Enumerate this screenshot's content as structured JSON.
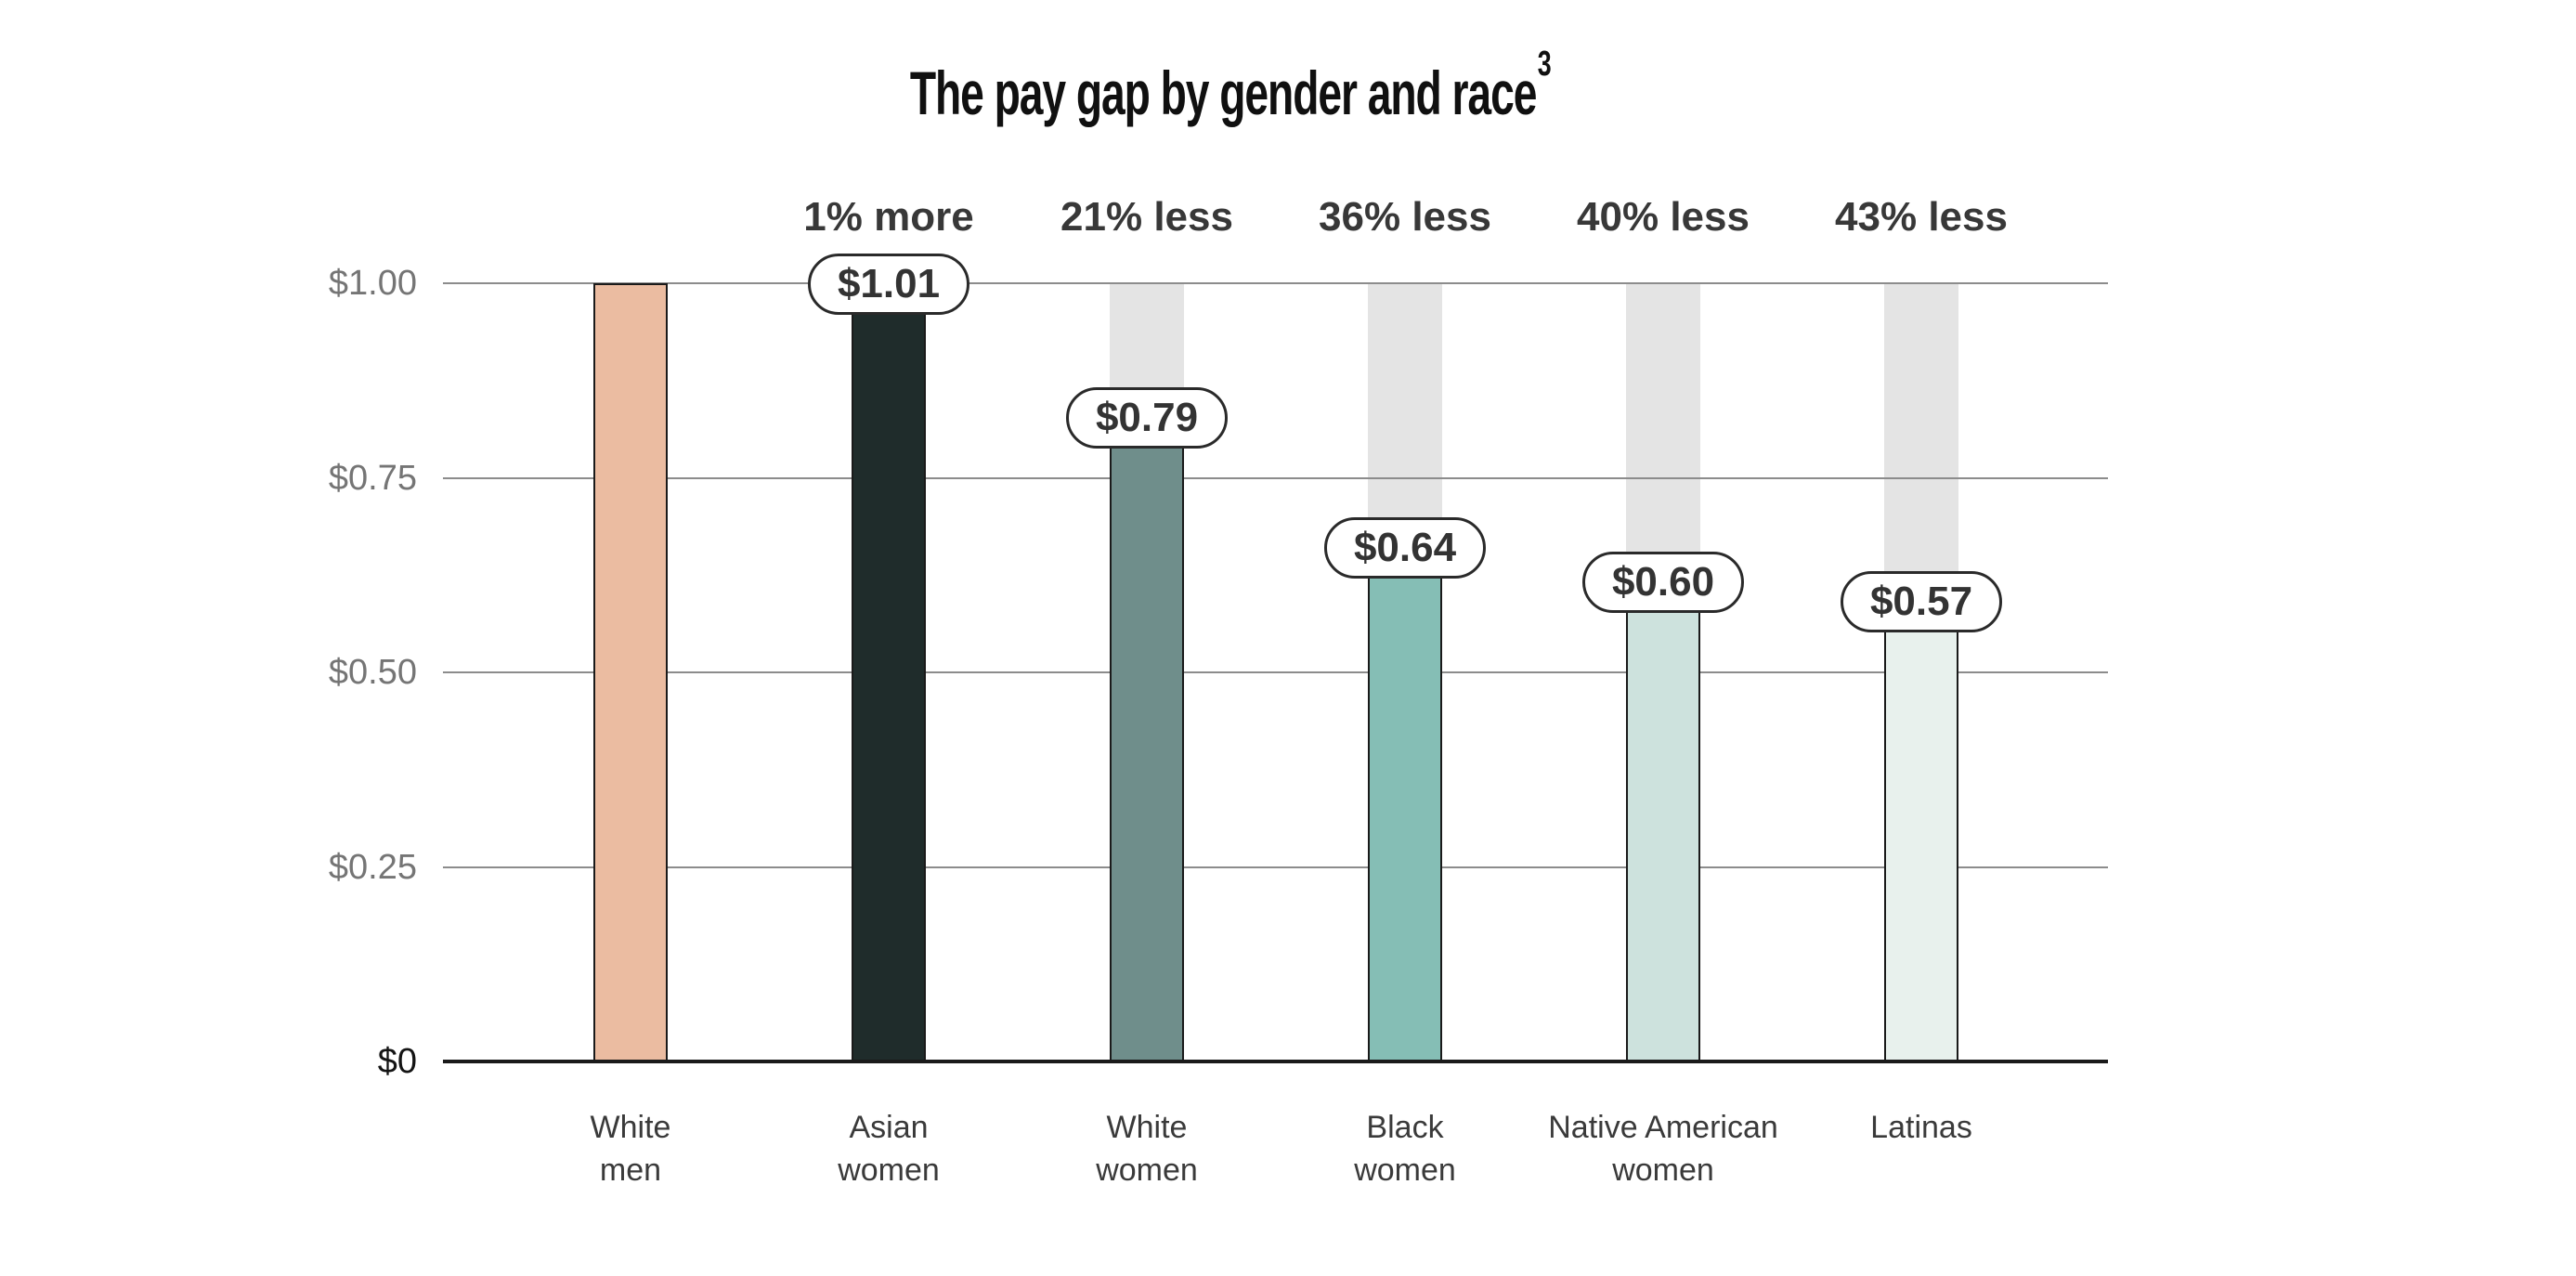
{
  "chart_data": {
    "type": "bar",
    "title": "The pay gap by gender and race",
    "title_superscript": "3",
    "xlabel": "",
    "ylabel": "",
    "ylim": [
      0,
      1.05
    ],
    "grid": "horizontal",
    "legend": "none",
    "y_axis": {
      "ticks": [
        {
          "label": "$1.00",
          "value": 1.0
        },
        {
          "label": "$0.75",
          "value": 0.75
        },
        {
          "label": "$0.50",
          "value": 0.5
        },
        {
          "label": "$0.25",
          "value": 0.25
        },
        {
          "label": "$0",
          "value": 0.0
        }
      ]
    },
    "bars": [
      {
        "category": "White men",
        "label_line1": "White",
        "label_line2": "men",
        "value": 1.0,
        "value_label": "",
        "pct_label": "",
        "color": "#EBBCA1",
        "ghost": false
      },
      {
        "category": "Asian women",
        "label_line1": "Asian",
        "label_line2": "women",
        "value": 1.01,
        "value_label": "$1.01",
        "pct_label": "1% more",
        "color": "#1F2C2B",
        "ghost": false
      },
      {
        "category": "White women",
        "label_line1": "White",
        "label_line2": "women",
        "value": 0.79,
        "value_label": "$0.79",
        "pct_label": "21% less",
        "color": "#6F8E8B",
        "ghost": true
      },
      {
        "category": "Black women",
        "label_line1": "Black",
        "label_line2": "women",
        "value": 0.64,
        "value_label": "$0.64",
        "pct_label": "36% less",
        "color": "#85BEB5",
        "ghost": true
      },
      {
        "category": "Native American women",
        "label_line1": "Native American",
        "label_line2": "women",
        "value": 0.6,
        "value_label": "$0.60",
        "pct_label": "40% less",
        "color": "#CDE2DD",
        "ghost": true
      },
      {
        "category": "Latinas",
        "label_line1": "Latinas",
        "label_line2": "",
        "value": 0.57,
        "value_label": "$0.57",
        "pct_label": "43% less",
        "color": "#E8F1ED",
        "ghost": true
      }
    ],
    "colors": {
      "ghost_bar": "#E4E4E4",
      "gridline": "#8C8C8C",
      "axis_line": "#1A1A1A",
      "bar_border": "#1A1A1A",
      "pill_border": "#2A2A2A",
      "label_text": "#383838",
      "tick_text": "#757575"
    }
  }
}
